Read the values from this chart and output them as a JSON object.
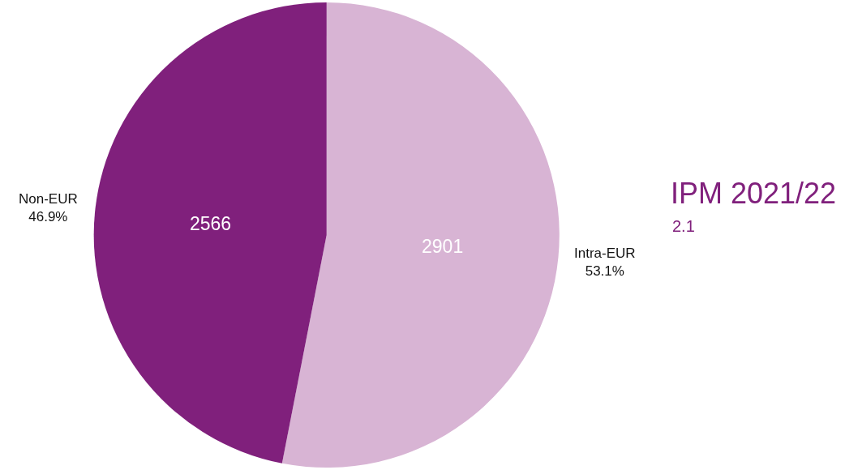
{
  "chart_data": {
    "type": "pie",
    "title": "IPM 2021/22",
    "subtitle": "2.1",
    "categories": [
      "Intra-EUR",
      "Non-EUR"
    ],
    "values": [
      2901,
      2566
    ],
    "colors": [
      "#d8b4d4",
      "#80207c"
    ],
    "data_labels": true,
    "annotations": [
      "53.1%",
      "46.9%"
    ],
    "legend": false
  }
}
